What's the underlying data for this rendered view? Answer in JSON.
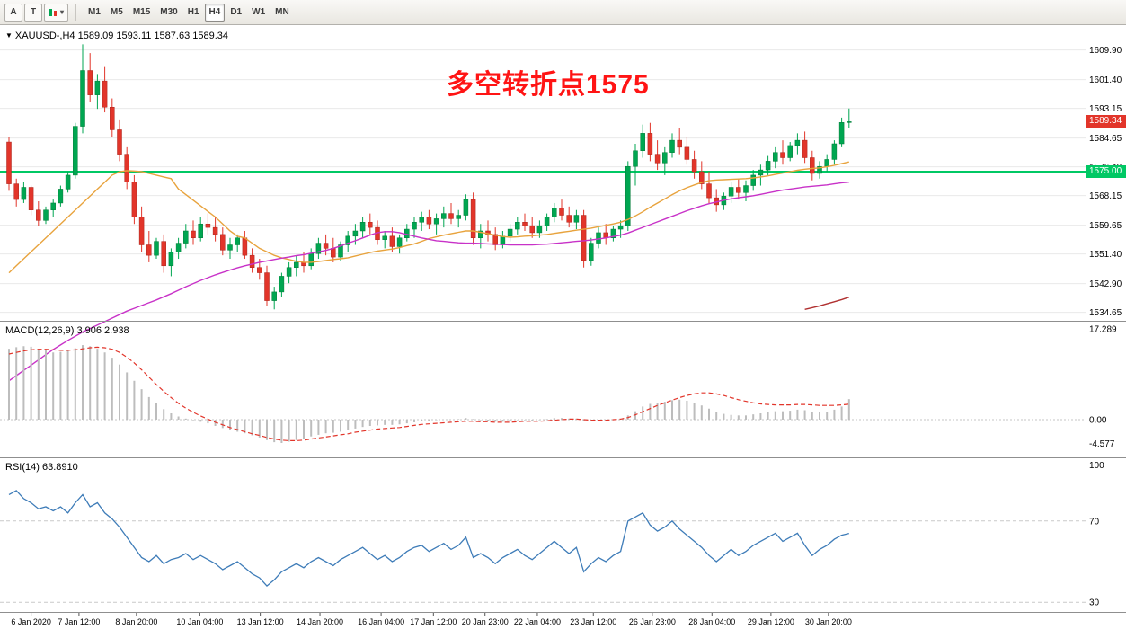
{
  "colors": {
    "up": "#00A651",
    "up_edge": "#007a36",
    "down": "#E2352A",
    "down_edge": "#a8241b",
    "ma_fast": "#E8A33D",
    "ma_slow": "#C832C8",
    "ma_long": "#B03030",
    "hline": "#00C864",
    "macd_hist": "#bdbdbd",
    "macd_signal": "#E2352A",
    "rsi": "#3E7CB8",
    "annotation": "#FF1414",
    "price_tag": "#E2352A"
  },
  "toolbar": {
    "tools": [
      {
        "label": "A"
      },
      {
        "label": "T"
      }
    ],
    "draw_tool": {
      "icon": "pencil-icon",
      "dropdown_glyph": "▾"
    },
    "timeframes": [
      "M1",
      "M5",
      "M15",
      "M30",
      "H1",
      "H4",
      "D1",
      "W1",
      "MN"
    ],
    "active_timeframe": "H4"
  },
  "chart": {
    "collapse_glyph": "▼",
    "title_symbol": "XAUUSD-,H4",
    "title_ohlc": "1589.09 1593.11 1587.63 1589.34",
    "annotation": {
      "text": "多空转折点1575",
      "color": "#FF1414"
    },
    "hline": {
      "value": 1575.0,
      "label": "1575.00"
    },
    "current_price": {
      "value": 1589.34,
      "label": "1589.34"
    },
    "price_axis": [
      "1609.90",
      "1601.40",
      "1593.15",
      "1584.65",
      "1576.40",
      "1568.15",
      "1559.65",
      "1551.40",
      "1542.90",
      "1534.65"
    ]
  },
  "chart_data": {
    "type": "candlestick",
    "symbol": "XAUUSD-",
    "timeframe": "H4",
    "candles": [
      [
        1583.5,
        1585,
        1569.5,
        1571.5
      ],
      [
        1571.5,
        1573,
        1565,
        1567
      ],
      [
        1567,
        1572,
        1566,
        1570.5
      ],
      [
        1570.5,
        1571,
        1562.5,
        1564
      ],
      [
        1564,
        1566.5,
        1559.5,
        1561
      ],
      [
        1561,
        1565,
        1560,
        1564
      ],
      [
        1564,
        1567,
        1562,
        1566
      ],
      [
        1566,
        1571,
        1565,
        1570
      ],
      [
        1570,
        1575,
        1569,
        1574
      ],
      [
        1574,
        1589,
        1573,
        1588
      ],
      [
        1588,
        1611.5,
        1586,
        1604
      ],
      [
        1604,
        1609,
        1595,
        1597
      ],
      [
        1597,
        1603,
        1593,
        1601
      ],
      [
        1601,
        1605,
        1592,
        1593.5
      ],
      [
        1593.5,
        1596,
        1585,
        1587
      ],
      [
        1587,
        1590,
        1578,
        1580
      ],
      [
        1580,
        1582,
        1570,
        1572
      ],
      [
        1572,
        1574,
        1560,
        1562
      ],
      [
        1562,
        1565,
        1552,
        1554
      ],
      [
        1554,
        1558,
        1549,
        1551
      ],
      [
        1551,
        1556,
        1550,
        1555
      ],
      [
        1555,
        1557,
        1546,
        1548
      ],
      [
        1548,
        1553,
        1545,
        1552
      ],
      [
        1552,
        1556,
        1550,
        1554.5
      ],
      [
        1554.5,
        1560,
        1553,
        1558
      ],
      [
        1558,
        1561,
        1554,
        1556
      ],
      [
        1556,
        1562,
        1555,
        1560
      ],
      [
        1560,
        1563,
        1557,
        1559
      ],
      [
        1559,
        1562,
        1555,
        1557
      ],
      [
        1557,
        1559,
        1551,
        1552.5
      ],
      [
        1552.5,
        1556,
        1550,
        1554
      ],
      [
        1554,
        1557,
        1552,
        1556
      ],
      [
        1556,
        1558,
        1550,
        1551
      ],
      [
        1551,
        1553,
        1546,
        1547.5
      ],
      [
        1547.5,
        1550,
        1544,
        1546
      ],
      [
        1546,
        1548,
        1536.5,
        1538
      ],
      [
        1538,
        1542,
        1535.5,
        1540.5
      ],
      [
        1540.5,
        1546,
        1539,
        1545
      ],
      [
        1545,
        1549,
        1543,
        1547.5
      ],
      [
        1547.5,
        1551,
        1545,
        1549
      ],
      [
        1549,
        1552,
        1546,
        1548
      ],
      [
        1548,
        1553,
        1547,
        1551.5
      ],
      [
        1551.5,
        1556,
        1550,
        1554.5
      ],
      [
        1554.5,
        1557,
        1551,
        1553
      ],
      [
        1553,
        1556,
        1549,
        1550.5
      ],
      [
        1550.5,
        1555,
        1549.5,
        1554
      ],
      [
        1554,
        1558,
        1552,
        1556.5
      ],
      [
        1556.5,
        1560,
        1554,
        1558
      ],
      [
        1558,
        1562,
        1556,
        1560.5
      ],
      [
        1560.5,
        1563,
        1557,
        1559
      ],
      [
        1559,
        1561,
        1554,
        1555.5
      ],
      [
        1555.5,
        1558,
        1553,
        1556.5
      ],
      [
        1556.5,
        1559,
        1552,
        1553.5
      ],
      [
        1553.5,
        1557,
        1551.5,
        1556
      ],
      [
        1556,
        1560,
        1555,
        1558.5
      ],
      [
        1558.5,
        1562,
        1556,
        1560.5
      ],
      [
        1560.5,
        1563.5,
        1558,
        1562
      ],
      [
        1562,
        1564,
        1558.5,
        1560
      ],
      [
        1560,
        1563,
        1557,
        1561.5
      ],
      [
        1561.5,
        1565,
        1559,
        1563
      ],
      [
        1563,
        1566,
        1560,
        1561.5
      ],
      [
        1561.5,
        1564,
        1559,
        1562.5
      ],
      [
        1562.5,
        1568.5,
        1561,
        1567
      ],
      [
        1567,
        1569,
        1554,
        1556
      ],
      [
        1556,
        1560,
        1553,
        1558
      ],
      [
        1558,
        1561,
        1555,
        1557
      ],
      [
        1557,
        1559,
        1552.5,
        1554
      ],
      [
        1554,
        1558,
        1553,
        1556.5
      ],
      [
        1556.5,
        1560,
        1555,
        1558.5
      ],
      [
        1558.5,
        1562,
        1557,
        1560.5
      ],
      [
        1560.5,
        1563,
        1558,
        1559.5
      ],
      [
        1559.5,
        1562,
        1556,
        1557.5
      ],
      [
        1557.5,
        1561,
        1556,
        1559.5
      ],
      [
        1559.5,
        1563,
        1558,
        1562
      ],
      [
        1562,
        1566,
        1560.5,
        1564.5
      ],
      [
        1564.5,
        1567,
        1561,
        1562.5
      ],
      [
        1562.5,
        1565,
        1559,
        1560.5
      ],
      [
        1560.5,
        1564,
        1558.5,
        1562.5
      ],
      [
        1562.5,
        1564,
        1547.5,
        1549.5
      ],
      [
        1549.5,
        1556,
        1548,
        1554.5
      ],
      [
        1554.5,
        1559,
        1553,
        1557.5
      ],
      [
        1557.5,
        1560,
        1554,
        1556
      ],
      [
        1556,
        1559.5,
        1555,
        1558.5
      ],
      [
        1558.5,
        1561,
        1556,
        1559.5
      ],
      [
        1559.5,
        1578,
        1558,
        1576.5
      ],
      [
        1576.5,
        1583,
        1571,
        1581
      ],
      [
        1581,
        1588.5,
        1579,
        1586
      ],
      [
        1586,
        1589,
        1578,
        1580
      ],
      [
        1580,
        1584,
        1575.5,
        1577.5
      ],
      [
        1577.5,
        1582,
        1574,
        1580.5
      ],
      [
        1580.5,
        1586,
        1579,
        1584
      ],
      [
        1584,
        1587.5,
        1580,
        1582
      ],
      [
        1582,
        1585,
        1577,
        1578.5
      ],
      [
        1578.5,
        1581,
        1573,
        1575
      ],
      [
        1575,
        1578,
        1570,
        1571.5
      ],
      [
        1571.5,
        1575,
        1566,
        1567.5
      ],
      [
        1567.5,
        1570,
        1563.5,
        1565.5
      ],
      [
        1565.5,
        1569,
        1564,
        1568
      ],
      [
        1568,
        1572,
        1566,
        1570.5
      ],
      [
        1570.5,
        1573,
        1567,
        1569
      ],
      [
        1569,
        1572.5,
        1566.5,
        1571
      ],
      [
        1571,
        1575.5,
        1569.5,
        1574
      ],
      [
        1574,
        1577,
        1571,
        1575.5
      ],
      [
        1575.5,
        1579.5,
        1574,
        1578
      ],
      [
        1578,
        1582,
        1576,
        1580.5
      ],
      [
        1580.5,
        1584,
        1577,
        1579
      ],
      [
        1579,
        1583.5,
        1578,
        1582.5
      ],
      [
        1582.5,
        1586,
        1580,
        1584
      ],
      [
        1584,
        1586.5,
        1577.5,
        1579
      ],
      [
        1579,
        1581,
        1572.5,
        1574.5
      ],
      [
        1574.5,
        1578,
        1573,
        1576.5
      ],
      [
        1576.5,
        1580,
        1575,
        1578.5
      ],
      [
        1578.5,
        1584,
        1577,
        1583
      ],
      [
        1583,
        1590.5,
        1582,
        1589.1
      ],
      [
        1589.09,
        1593.11,
        1587.63,
        1589.34
      ]
    ],
    "ma_fast": [
      1546,
      1548,
      1550,
      1552,
      1554,
      1556,
      1558,
      1560,
      1562,
      1564,
      1566,
      1568,
      1570,
      1572,
      1574,
      1575,
      1575.3,
      1575.2,
      1575,
      1574.5,
      1574,
      1573.5,
      1573,
      1570,
      1568.4,
      1566.8,
      1565.2,
      1563.6,
      1562,
      1560,
      1558,
      1556.5,
      1556,
      1554.5,
      1553,
      1552,
      1551,
      1550.3,
      1549.8,
      1549.3,
      1549,
      1549,
      1549.2,
      1549.5,
      1549.8,
      1550,
      1550.3,
      1550.8,
      1551.3,
      1551.8,
      1552.2,
      1552.5,
      1552.8,
      1553.2,
      1553.8,
      1554.3,
      1555,
      1555.8,
      1556.3,
      1556.8,
      1557.2,
      1557.6,
      1558,
      1558,
      1557.6,
      1557.2,
      1556.8,
      1556.4,
      1556.2,
      1556.3,
      1556.5,
      1556.6,
      1556.8,
      1557,
      1557.3,
      1557.6,
      1557.9,
      1558.2,
      1558.5,
      1558.8,
      1559.2,
      1559.6,
      1560,
      1560.5,
      1561.3,
      1562.3,
      1563.5,
      1564.8,
      1566,
      1567.2,
      1568.4,
      1569.5,
      1570.4,
      1571.2,
      1571.9,
      1572.4,
      1572.6,
      1572.7,
      1572.8,
      1572.9,
      1573,
      1573.2,
      1573.5,
      1573.8,
      1574.2,
      1574.6,
      1575,
      1575.4,
      1575.7,
      1575.9,
      1576.1,
      1576.4,
      1576.8,
      1577.3,
      1577.8
    ],
    "ma_slow": [
      1515,
      1516.5,
      1518,
      1519.5,
      1521,
      1522.5,
      1524,
      1525.3,
      1526.6,
      1527.8,
      1529,
      1530,
      1531,
      1532,
      1533,
      1534,
      1535,
      1535.8,
      1536.6,
      1537.4,
      1538.2,
      1539.1,
      1540,
      1541,
      1542,
      1542.9,
      1543.8,
      1544.6,
      1545.4,
      1546.1,
      1546.8,
      1547.4,
      1548,
      1548.5,
      1549,
      1549.4,
      1549.8,
      1550.2,
      1550.5,
      1550.9,
      1551.2,
      1551.6,
      1552,
      1552.4,
      1553,
      1553.7,
      1554.5,
      1555.2,
      1556,
      1556.8,
      1557.5,
      1557.8,
      1557.8,
      1557.5,
      1557,
      1556.5,
      1556,
      1555.6,
      1555.2,
      1555,
      1554.8,
      1554.6,
      1554.5,
      1554.5,
      1554.4,
      1554.3,
      1554.2,
      1554.1,
      1554,
      1554,
      1554,
      1554,
      1554.1,
      1554.2,
      1554.4,
      1554.6,
      1554.8,
      1555,
      1555.2,
      1555.4,
      1555.7,
      1556,
      1556.4,
      1556.8,
      1557.4,
      1558.2,
      1559,
      1559.8,
      1560.6,
      1561.4,
      1562.2,
      1563,
      1563.8,
      1564.5,
      1565.2,
      1565.8,
      1566.3,
      1566.8,
      1567.2,
      1567.5,
      1567.8,
      1568.1,
      1568.5,
      1568.9,
      1569.3,
      1569.7,
      1570,
      1570.3,
      1570.6,
      1570.8,
      1571,
      1571.2,
      1571.5,
      1571.8,
      1572
    ],
    "ma_long": {
      "start_index": 108,
      "values": [
        1535.5,
        1536,
        1536.5,
        1537.1,
        1537.7,
        1538.3,
        1539
      ]
    },
    "macd": {
      "title": "MACD(12,26,9) 3.906 2.938",
      "axis_labels": [
        "17.289",
        "0.00",
        "-4.577"
      ],
      "histogram": [
        13.5,
        13.8,
        14.0,
        13.9,
        13.5,
        13.2,
        12.8,
        12.9,
        13.1,
        13.6,
        14.2,
        14.0,
        13.5,
        12.8,
        11.8,
        10.5,
        9.0,
        7.4,
        5.8,
        4.3,
        3.1,
        2.0,
        1.2,
        0.6,
        0.2,
        -0.1,
        -0.4,
        -0.7,
        -1.2,
        -1.6,
        -2.0,
        -2.3,
        -2.6,
        -3.0,
        -3.4,
        -3.9,
        -4.3,
        -4.45,
        -4.2,
        -3.9,
        -3.6,
        -3.2,
        -2.9,
        -2.6,
        -2.5,
        -2.3,
        -2.0,
        -1.7,
        -1.4,
        -1.2,
        -1.1,
        -1.0,
        -1.0,
        -0.9,
        -0.7,
        -0.5,
        -0.3,
        -0.2,
        -0.1,
        0.0,
        0.0,
        0.1,
        0.3,
        0.1,
        -0.1,
        -0.2,
        -0.4,
        -0.4,
        -0.3,
        -0.1,
        -0.1,
        -0.2,
        -0.1,
        0.1,
        0.3,
        0.3,
        0.2,
        0.2,
        -0.2,
        -0.3,
        -0.2,
        -0.2,
        -0.1,
        0.0,
        0.8,
        1.6,
        2.5,
        3.0,
        3.2,
        3.4,
        3.7,
        3.8,
        3.6,
        3.2,
        2.7,
        2.1,
        1.5,
        1.1,
        0.9,
        0.8,
        0.8,
        1.0,
        1.2,
        1.4,
        1.6,
        1.6,
        1.7,
        1.9,
        1.8,
        1.5,
        1.4,
        1.5,
        1.9,
        2.5,
        3.91
      ],
      "signal": [
        12.5,
        12.8,
        13.1,
        13.3,
        13.4,
        13.4,
        13.3,
        13.2,
        13.2,
        13.3,
        13.5,
        13.7,
        13.8,
        13.7,
        13.4,
        12.8,
        11.9,
        10.8,
        9.5,
        8.1,
        6.7,
        5.4,
        4.2,
        3.1,
        2.2,
        1.4,
        0.7,
        0.1,
        -0.5,
        -1.0,
        -1.5,
        -1.9,
        -2.3,
        -2.7,
        -3.0,
        -3.4,
        -3.7,
        -3.9,
        -4.0,
        -4.0,
        -3.9,
        -3.7,
        -3.5,
        -3.3,
        -3.1,
        -2.9,
        -2.7,
        -2.4,
        -2.2,
        -2.0,
        -1.8,
        -1.7,
        -1.6,
        -1.5,
        -1.3,
        -1.1,
        -0.9,
        -0.8,
        -0.7,
        -0.6,
        -0.5,
        -0.4,
        -0.3,
        -0.3,
        -0.4,
        -0.4,
        -0.5,
        -0.5,
        -0.5,
        -0.4,
        -0.3,
        -0.3,
        -0.3,
        -0.2,
        -0.1,
        0.0,
        0.1,
        0.1,
        0.0,
        -0.1,
        -0.1,
        -0.1,
        0.0,
        0.1,
        0.4,
        0.9,
        1.5,
        2.1,
        2.7,
        3.2,
        3.7,
        4.2,
        4.6,
        4.9,
        5.1,
        5.1,
        4.9,
        4.6,
        4.2,
        3.8,
        3.5,
        3.2,
        3.0,
        2.9,
        2.8,
        2.8,
        2.8,
        2.9,
        2.9,
        2.8,
        2.7,
        2.7,
        2.7,
        2.8,
        2.94
      ]
    },
    "rsi": {
      "title": "RSI(14) 63.8910",
      "axis_labels": [
        "100",
        "70",
        "30"
      ],
      "levels": [
        70,
        30
      ],
      "values": [
        83,
        85,
        81,
        79,
        76,
        77,
        75,
        77,
        74,
        79,
        83,
        77,
        79,
        74,
        71,
        67,
        62,
        57,
        52,
        50,
        53,
        49,
        51,
        52,
        54,
        51,
        53,
        51,
        49,
        46,
        48,
        50,
        47,
        44,
        42,
        38,
        41,
        45,
        47,
        49,
        47,
        50,
        52,
        50,
        48,
        51,
        53,
        55,
        57,
        54,
        51,
        53,
        50,
        52,
        55,
        57,
        58,
        55,
        57,
        59,
        56,
        58,
        62,
        52,
        54,
        52,
        49,
        52,
        54,
        56,
        53,
        51,
        54,
        57,
        60,
        57,
        54,
        57,
        45,
        49,
        52,
        50,
        53,
        55,
        70,
        72,
        74,
        68,
        65,
        67,
        70,
        66,
        63,
        60,
        57,
        53,
        50,
        53,
        56,
        53,
        55,
        58,
        60,
        62,
        64,
        60,
        62,
        64,
        58,
        53,
        56,
        58,
        61,
        63,
        63.89
      ]
    },
    "time_labels": [
      {
        "text": "6 Jan 2020",
        "i": 3
      },
      {
        "text": "7 Jan 12:00",
        "i": 9.5
      },
      {
        "text": "8 Jan 20:00",
        "i": 17.3
      },
      {
        "text": "10 Jan 04:00",
        "i": 25.9
      },
      {
        "text": "13 Jan 12:00",
        "i": 34.1
      },
      {
        "text": "14 Jan 20:00",
        "i": 42.2
      },
      {
        "text": "16 Jan 04:00",
        "i": 50.5
      },
      {
        "text": "17 Jan 12:00",
        "i": 57.6
      },
      {
        "text": "20 Jan 23:00",
        "i": 64.6
      },
      {
        "text": "22 Jan 04:00",
        "i": 71.7
      },
      {
        "text": "23 Jan 12:00",
        "i": 79.3
      },
      {
        "text": "26 Jan 23:00",
        "i": 87.3
      },
      {
        "text": "28 Jan 04:00",
        "i": 95.4
      },
      {
        "text": "29 Jan 12:00",
        "i": 103.4
      },
      {
        "text": "30 Jan 20:00",
        "i": 111.2
      }
    ]
  }
}
